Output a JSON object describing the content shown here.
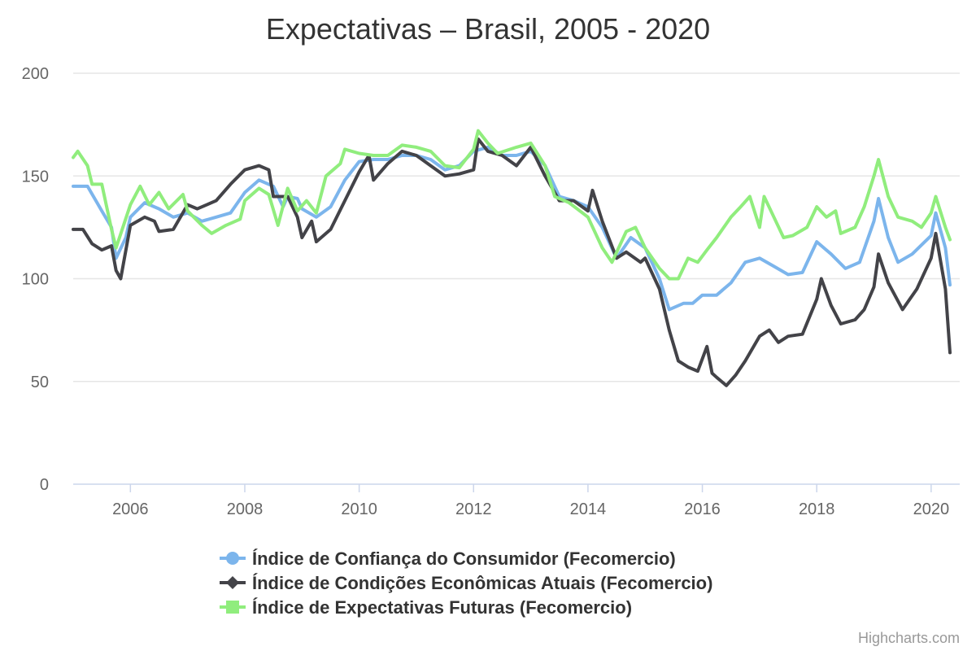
{
  "chart_data": {
    "type": "line",
    "title": "Expectativas – Brasil, 2005 - 2020",
    "xlabel": "",
    "ylabel": "",
    "xlim": [
      2005.0,
      2020.5
    ],
    "ylim": [
      0,
      200
    ],
    "x_ticks": [
      "2006",
      "2008",
      "2010",
      "2012",
      "2014",
      "2016",
      "2018",
      "2020"
    ],
    "y_ticks": [
      "0",
      "50",
      "100",
      "150",
      "200"
    ],
    "grid": "horizontal",
    "legend_position": "bottom-center",
    "series": [
      {
        "name": "Índice de Confiança do Consumidor (Fecomercio)",
        "color": "#7cb5ec",
        "marker": "circle",
        "points": [
          [
            2005.0,
            145
          ],
          [
            2005.25,
            145
          ],
          [
            2005.5,
            133
          ],
          [
            2005.67,
            125
          ],
          [
            2005.75,
            110
          ],
          [
            2005.92,
            120
          ],
          [
            2006.0,
            130
          ],
          [
            2006.25,
            137
          ],
          [
            2006.5,
            134
          ],
          [
            2006.75,
            130
          ],
          [
            2007.0,
            132
          ],
          [
            2007.25,
            128
          ],
          [
            2007.5,
            130
          ],
          [
            2007.75,
            132
          ],
          [
            2008.0,
            142
          ],
          [
            2008.25,
            148
          ],
          [
            2008.5,
            145
          ],
          [
            2008.67,
            135
          ],
          [
            2008.75,
            140
          ],
          [
            2008.92,
            139
          ],
          [
            2009.0,
            134
          ],
          [
            2009.25,
            130
          ],
          [
            2009.5,
            135
          ],
          [
            2009.75,
            148
          ],
          [
            2010.0,
            157
          ],
          [
            2010.25,
            158
          ],
          [
            2010.5,
            158
          ],
          [
            2010.75,
            160
          ],
          [
            2011.0,
            160
          ],
          [
            2011.25,
            158
          ],
          [
            2011.5,
            153
          ],
          [
            2011.75,
            155
          ],
          [
            2012.0,
            162
          ],
          [
            2012.25,
            164
          ],
          [
            2012.5,
            160
          ],
          [
            2012.75,
            160
          ],
          [
            2013.0,
            162
          ],
          [
            2013.25,
            155
          ],
          [
            2013.5,
            140
          ],
          [
            2013.75,
            138
          ],
          [
            2014.0,
            135
          ],
          [
            2014.25,
            125
          ],
          [
            2014.5,
            110
          ],
          [
            2014.75,
            120
          ],
          [
            2015.0,
            115
          ],
          [
            2015.25,
            100
          ],
          [
            2015.42,
            85
          ],
          [
            2015.67,
            88
          ],
          [
            2015.83,
            88
          ],
          [
            2016.0,
            92
          ],
          [
            2016.25,
            92
          ],
          [
            2016.5,
            98
          ],
          [
            2016.75,
            108
          ],
          [
            2017.0,
            110
          ],
          [
            2017.25,
            106
          ],
          [
            2017.5,
            102
          ],
          [
            2017.75,
            103
          ],
          [
            2018.0,
            118
          ],
          [
            2018.25,
            112
          ],
          [
            2018.5,
            105
          ],
          [
            2018.75,
            108
          ],
          [
            2019.0,
            128
          ],
          [
            2019.08,
            139
          ],
          [
            2019.25,
            120
          ],
          [
            2019.42,
            108
          ],
          [
            2019.67,
            112
          ],
          [
            2020.0,
            121
          ],
          [
            2020.08,
            132
          ],
          [
            2020.25,
            115
          ],
          [
            2020.33,
            97
          ]
        ]
      },
      {
        "name": "Índice de Condições Econômicas Atuais (Fecomercio)",
        "color": "#434348",
        "marker": "diamond",
        "points": [
          [
            2005.0,
            124
          ],
          [
            2005.17,
            124
          ],
          [
            2005.33,
            117
          ],
          [
            2005.5,
            114
          ],
          [
            2005.67,
            116
          ],
          [
            2005.75,
            104
          ],
          [
            2005.83,
            100
          ],
          [
            2006.0,
            126
          ],
          [
            2006.25,
            130
          ],
          [
            2006.42,
            128
          ],
          [
            2006.5,
            123
          ],
          [
            2006.75,
            124
          ],
          [
            2007.0,
            136
          ],
          [
            2007.17,
            134
          ],
          [
            2007.5,
            138
          ],
          [
            2007.75,
            146
          ],
          [
            2008.0,
            153
          ],
          [
            2008.25,
            155
          ],
          [
            2008.42,
            153
          ],
          [
            2008.5,
            140
          ],
          [
            2008.75,
            140
          ],
          [
            2008.92,
            130
          ],
          [
            2009.0,
            120
          ],
          [
            2009.17,
            128
          ],
          [
            2009.25,
            118
          ],
          [
            2009.5,
            124
          ],
          [
            2009.75,
            138
          ],
          [
            2010.0,
            152
          ],
          [
            2010.17,
            160
          ],
          [
            2010.25,
            148
          ],
          [
            2010.5,
            156
          ],
          [
            2010.75,
            162
          ],
          [
            2011.0,
            160
          ],
          [
            2011.25,
            155
          ],
          [
            2011.5,
            150
          ],
          [
            2011.75,
            151
          ],
          [
            2012.0,
            153
          ],
          [
            2012.08,
            168
          ],
          [
            2012.25,
            162
          ],
          [
            2012.5,
            160
          ],
          [
            2012.75,
            155
          ],
          [
            2013.0,
            164
          ],
          [
            2013.25,
            150
          ],
          [
            2013.5,
            138
          ],
          [
            2013.75,
            138
          ],
          [
            2014.0,
            133
          ],
          [
            2014.08,
            143
          ],
          [
            2014.25,
            128
          ],
          [
            2014.5,
            110
          ],
          [
            2014.67,
            113
          ],
          [
            2014.92,
            108
          ],
          [
            2015.0,
            110
          ],
          [
            2015.25,
            95
          ],
          [
            2015.42,
            75
          ],
          [
            2015.58,
            60
          ],
          [
            2015.75,
            57
          ],
          [
            2015.92,
            55
          ],
          [
            2016.08,
            67
          ],
          [
            2016.17,
            54
          ],
          [
            2016.25,
            52
          ],
          [
            2016.42,
            48
          ],
          [
            2016.58,
            53
          ],
          [
            2016.75,
            60
          ],
          [
            2017.0,
            72
          ],
          [
            2017.17,
            75
          ],
          [
            2017.33,
            69
          ],
          [
            2017.5,
            72
          ],
          [
            2017.75,
            73
          ],
          [
            2018.0,
            90
          ],
          [
            2018.08,
            100
          ],
          [
            2018.25,
            87
          ],
          [
            2018.42,
            78
          ],
          [
            2018.67,
            80
          ],
          [
            2018.83,
            85
          ],
          [
            2019.0,
            96
          ],
          [
            2019.08,
            112
          ],
          [
            2019.25,
            98
          ],
          [
            2019.5,
            85
          ],
          [
            2019.75,
            95
          ],
          [
            2020.0,
            110
          ],
          [
            2020.08,
            122
          ],
          [
            2020.25,
            95
          ],
          [
            2020.33,
            64
          ]
        ]
      },
      {
        "name": "Índice de Expectativas Futuras (Fecomercio)",
        "color": "#90ed7d",
        "marker": "square",
        "points": [
          [
            2005.0,
            159
          ],
          [
            2005.08,
            162
          ],
          [
            2005.25,
            155
          ],
          [
            2005.33,
            146
          ],
          [
            2005.5,
            146
          ],
          [
            2005.67,
            124
          ],
          [
            2005.75,
            115
          ],
          [
            2006.0,
            136
          ],
          [
            2006.17,
            145
          ],
          [
            2006.33,
            136
          ],
          [
            2006.5,
            142
          ],
          [
            2006.67,
            134
          ],
          [
            2006.92,
            141
          ],
          [
            2007.0,
            133
          ],
          [
            2007.25,
            126
          ],
          [
            2007.42,
            122
          ],
          [
            2007.67,
            126
          ],
          [
            2007.92,
            129
          ],
          [
            2008.0,
            138
          ],
          [
            2008.25,
            144
          ],
          [
            2008.42,
            141
          ],
          [
            2008.58,
            126
          ],
          [
            2008.75,
            144
          ],
          [
            2008.92,
            133
          ],
          [
            2009.08,
            138
          ],
          [
            2009.25,
            132
          ],
          [
            2009.42,
            150
          ],
          [
            2009.67,
            156
          ],
          [
            2009.75,
            163
          ],
          [
            2010.0,
            161
          ],
          [
            2010.25,
            160
          ],
          [
            2010.5,
            160
          ],
          [
            2010.75,
            165
          ],
          [
            2011.0,
            164
          ],
          [
            2011.25,
            162
          ],
          [
            2011.5,
            155
          ],
          [
            2011.75,
            154
          ],
          [
            2012.0,
            163
          ],
          [
            2012.08,
            172
          ],
          [
            2012.25,
            166
          ],
          [
            2012.42,
            161
          ],
          [
            2012.75,
            164
          ],
          [
            2013.0,
            166
          ],
          [
            2013.25,
            155
          ],
          [
            2013.42,
            140
          ],
          [
            2013.67,
            137
          ],
          [
            2014.0,
            130
          ],
          [
            2014.25,
            115
          ],
          [
            2014.42,
            108
          ],
          [
            2014.67,
            123
          ],
          [
            2014.83,
            125
          ],
          [
            2015.0,
            115
          ],
          [
            2015.25,
            105
          ],
          [
            2015.42,
            100
          ],
          [
            2015.58,
            100
          ],
          [
            2015.75,
            110
          ],
          [
            2015.92,
            108
          ],
          [
            2016.08,
            114
          ],
          [
            2016.25,
            120
          ],
          [
            2016.5,
            130
          ],
          [
            2016.67,
            135
          ],
          [
            2016.83,
            140
          ],
          [
            2017.0,
            125
          ],
          [
            2017.08,
            140
          ],
          [
            2017.25,
            130
          ],
          [
            2017.42,
            120
          ],
          [
            2017.58,
            121
          ],
          [
            2017.83,
            125
          ],
          [
            2018.0,
            135
          ],
          [
            2018.17,
            130
          ],
          [
            2018.33,
            133
          ],
          [
            2018.42,
            122
          ],
          [
            2018.67,
            125
          ],
          [
            2018.83,
            135
          ],
          [
            2019.0,
            150
          ],
          [
            2019.08,
            158
          ],
          [
            2019.25,
            140
          ],
          [
            2019.42,
            130
          ],
          [
            2019.67,
            128
          ],
          [
            2019.83,
            125
          ],
          [
            2020.0,
            132
          ],
          [
            2020.08,
            140
          ],
          [
            2020.25,
            125
          ],
          [
            2020.33,
            119
          ]
        ]
      }
    ]
  },
  "credits": "Highcharts.com"
}
